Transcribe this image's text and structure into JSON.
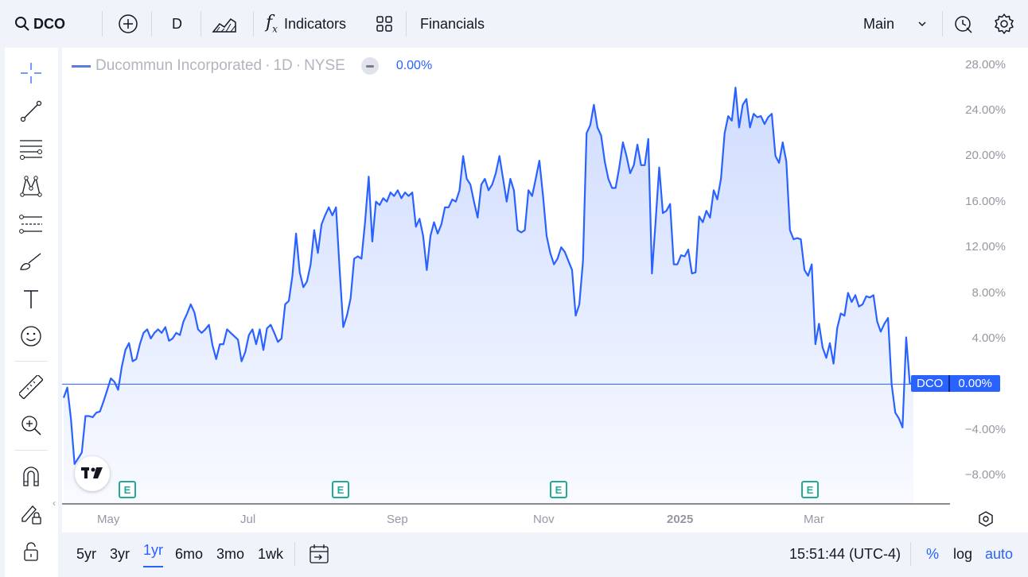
{
  "toolbar": {
    "symbol": "DCO",
    "interval": "D",
    "indicators_label": "Indicators",
    "financials_label": "Financials",
    "layout_label": "Main"
  },
  "legend": {
    "title": "Ducommun Incorporated",
    "interval": "1D",
    "exchange": "NYSE",
    "change": "0.00%"
  },
  "price_tag": {
    "symbol": "DCO",
    "value": "0.00%"
  },
  "bottombar": {
    "ranges": [
      "5yr",
      "3yr",
      "1yr",
      "6mo",
      "3mo",
      "1wk"
    ],
    "active_range": "1yr",
    "time": "15:51:44 (UTC-4)",
    "pct_label": "%",
    "log_label": "log",
    "auto_label": "auto"
  },
  "colors": {
    "line": "#2962ff",
    "accent": "#2962ff",
    "earnings": "#22ab94"
  },
  "icons": [
    "search-icon",
    "plus-circle-icon",
    "bar-style-icon",
    "function-icon",
    "templates-icon",
    "chevron-down-icon",
    "alert-icon",
    "gear-icon",
    "crosshair-icon",
    "trend-line-icon",
    "fib-icon",
    "pattern-icon",
    "projection-icon",
    "brush-icon",
    "text-icon",
    "emoji-icon",
    "ruler-icon",
    "zoom-icon",
    "magnet-icon",
    "lock-draw-icon",
    "lock-icon",
    "compare-icon",
    "eye-settings-icon"
  ],
  "chart_data": {
    "type": "area",
    "ylabel": "",
    "ylim": [
      -10.5,
      29.5
    ],
    "y_ticks": [
      "28.00%",
      "24.00%",
      "20.00%",
      "16.00%",
      "12.00%",
      "8.00%",
      "4.00%",
      "-4.00%",
      "-8.00%"
    ],
    "x_ticks": [
      "May",
      "Jul",
      "Sep",
      "Nov",
      "2025",
      "Mar"
    ],
    "baseline": 0,
    "earnings": [
      "E",
      "E",
      "E",
      "E"
    ],
    "series": [
      {
        "values": [
          -1.2,
          -0.3,
          -3,
          -7,
          -6.5,
          -6,
          -2.8,
          -2.8,
          -2.9,
          -2.5,
          -2.4,
          -1.5,
          -0.5,
          0.5,
          0.2,
          -0.5,
          1.5,
          3,
          3.6,
          2,
          2.2,
          3.5,
          4.5,
          4.8,
          4,
          4.5,
          4.8,
          4.5,
          5,
          3.8,
          4,
          4.5,
          4.3,
          5.5,
          6.2,
          7,
          6.3,
          4.8,
          4.5,
          4.8,
          5.2,
          3.4,
          2.2,
          3.5,
          3.5,
          4.8,
          4.5,
          4.2,
          3.9,
          2,
          2.8,
          4.3,
          4.8,
          3.5,
          4.8,
          3,
          4.9,
          5.2,
          4.5,
          3.7,
          4,
          7,
          7.3,
          9.5,
          13.2,
          9.8,
          8.5,
          9,
          10.5,
          13.5,
          11.5,
          14,
          14.8,
          15.5,
          14.8,
          15.5,
          10,
          5,
          6,
          7.5,
          11,
          11.2,
          11,
          14.2,
          18.2,
          12.5,
          16,
          15.7,
          16.3,
          16,
          16.8,
          16.5,
          17,
          16.3,
          16.8,
          16.5,
          16.8,
          13.8,
          14.5,
          13,
          10,
          13,
          14.2,
          13.2,
          14,
          15.5,
          15.5,
          16.2,
          16,
          17,
          20,
          18,
          17.5,
          16,
          14.6,
          17.5,
          18,
          17,
          17.5,
          18.5,
          20,
          18,
          16,
          18,
          17,
          13.5,
          13.3,
          13.5,
          17,
          16.5,
          18,
          19.6,
          16.5,
          13,
          11.5,
          10.5,
          11,
          12,
          11.6,
          10.8,
          10,
          6,
          7,
          10.8,
          22,
          22.7,
          24.5,
          22.5,
          21.8,
          19.5,
          18,
          17.2,
          17.2,
          19,
          21.2,
          20,
          18.5,
          19.2,
          21,
          19.2,
          19.2,
          21.5,
          9.7,
          14.2,
          19,
          15,
          15.2,
          15.8,
          10.5,
          10.5,
          11.3,
          11.2,
          11.8,
          9.7,
          9.8,
          14.7,
          14.2,
          15.2,
          14.6,
          17,
          16.2,
          18,
          22,
          23.5,
          23.1,
          26,
          22.5,
          24.5,
          25,
          22.5,
          23.7,
          23.4,
          23.5,
          22.8,
          23.4,
          23.7,
          20,
          19.4,
          21.2,
          19.5,
          13.5,
          12.7,
          12.8,
          12.7,
          10,
          9.5,
          10.5,
          3.5,
          5.3,
          3.2,
          2.3,
          3.6,
          1.8,
          4.9,
          6.2,
          6,
          8,
          7.2,
          7.8,
          6.8,
          7,
          7.7,
          7.6,
          7.8,
          5.5,
          4.6,
          5.3,
          5.8,
          0,
          -2.5,
          -3,
          -3.8,
          4.1,
          0.1,
          0
        ]
      }
    ]
  }
}
